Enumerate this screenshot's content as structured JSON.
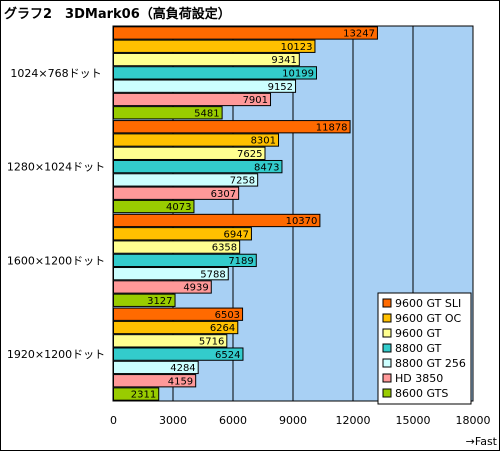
{
  "chart_data": {
    "type": "bar",
    "orientation": "horizontal",
    "title": "グラフ2　3DMark06（高負荷設定）",
    "xlabel": "→Fast",
    "ylabel": "",
    "xlim": [
      0,
      18000
    ],
    "ticks": [
      0,
      3000,
      6000,
      9000,
      12000,
      15000,
      18000
    ],
    "grid": true,
    "legend_position": "bottom-right",
    "plot_background": "#a8d0f4",
    "categories": [
      "1024×768ドット",
      "1280×1024ドット",
      "1600×1200ドット",
      "1920×1200ドット"
    ],
    "series": [
      {
        "name": "9600 GT SLI",
        "color": "#ff6a00",
        "values": [
          13247,
          11878,
          10370,
          6503
        ]
      },
      {
        "name": "9600 GT OC",
        "color": "#ffc000",
        "values": [
          10123,
          8301,
          6947,
          6264
        ]
      },
      {
        "name": "9600 GT",
        "color": "#ffff90",
        "values": [
          9341,
          7625,
          6358,
          5716
        ]
      },
      {
        "name": "8800 GT",
        "color": "#33cccc",
        "values": [
          10199,
          8473,
          7189,
          6524
        ]
      },
      {
        "name": "8800 GT 256",
        "color": "#ccffff",
        "values": [
          9152,
          7258,
          5788,
          4284
        ]
      },
      {
        "name": "HD 3850",
        "color": "#ff9999",
        "values": [
          7901,
          6307,
          4939,
          4159
        ]
      },
      {
        "name": "8600 GTS",
        "color": "#99cc00",
        "values": [
          5481,
          4073,
          3127,
          2311
        ]
      }
    ]
  }
}
